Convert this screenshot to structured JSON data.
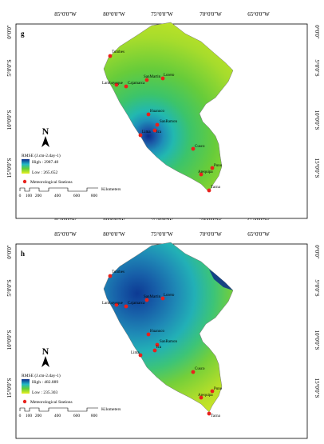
{
  "panels": [
    {
      "id": "g",
      "letter": "g",
      "legend": {
        "title": "RMSE (J.cm-2.day-1)",
        "high": "High : 2987.48",
        "low": "Low : 265.652",
        "stations_label": "Meteorological Stations"
      },
      "scalebar": {
        "ticks": [
          "0",
          "100",
          "200",
          "400",
          "600",
          "800"
        ],
        "unit": "Kilometers"
      },
      "gradient": {
        "type": "single-peak",
        "high_color": "#0a2c8a",
        "mid_color": "#22b8c8",
        "low_color": "#e8ef1e"
      },
      "stations": [
        {
          "name": "Tumbes"
        },
        {
          "name": "Lambayeque"
        },
        {
          "name": "Cajamarca"
        },
        {
          "name": "SanMartin"
        },
        {
          "name": "Loreto"
        },
        {
          "name": "Huanuco"
        },
        {
          "name": "SanRamon"
        },
        {
          "name": "Lima"
        },
        {
          "name": "Ica"
        },
        {
          "name": "Cusco"
        },
        {
          "name": "Puno"
        },
        {
          "name": "Arequipa"
        },
        {
          "name": "Tacna"
        }
      ]
    },
    {
      "id": "h",
      "letter": "h",
      "legend": {
        "title": "RMSE (J.cm-2.day-1)",
        "high": "High : 482.889",
        "low": "Low : 235.303",
        "stations_label": "Meteorological Stations"
      },
      "scalebar": {
        "ticks": [
          "0",
          "100",
          "200",
          "400",
          "600",
          "800"
        ],
        "unit": "Kilometers"
      },
      "gradient": {
        "type": "north-high",
        "high_color": "#0a2c8a",
        "mid_color": "#22b8c8",
        "low_color": "#e8ef1e"
      },
      "stations": [
        {
          "name": "Tumbes"
        },
        {
          "name": "Lambayeque"
        },
        {
          "name": "Cajamarca"
        },
        {
          "name": "SanMartin"
        },
        {
          "name": "Loreto"
        },
        {
          "name": "Huanuco"
        },
        {
          "name": "SanRamon"
        },
        {
          "name": "Lima"
        },
        {
          "name": "Ica"
        },
        {
          "name": "Cusco"
        },
        {
          "name": "Puno"
        },
        {
          "name": "Arequipa"
        },
        {
          "name": "Tacna"
        }
      ]
    }
  ],
  "axes": {
    "longitudes": [
      "85°0'0\"W",
      "80°0'0\"W",
      "75°0'0\"W",
      "70°0'0\"W",
      "65°0'0\"W"
    ],
    "latitudes": [
      "0°0'0\"",
      "5°0'0\"S",
      "10°0'0\"S",
      "15°0'0\"S"
    ]
  },
  "north_arrow_label": "N",
  "colors": {
    "station": "#e8211c",
    "frame": "#000000",
    "high": "#0a2c8a",
    "low": "#e8ef1e"
  }
}
